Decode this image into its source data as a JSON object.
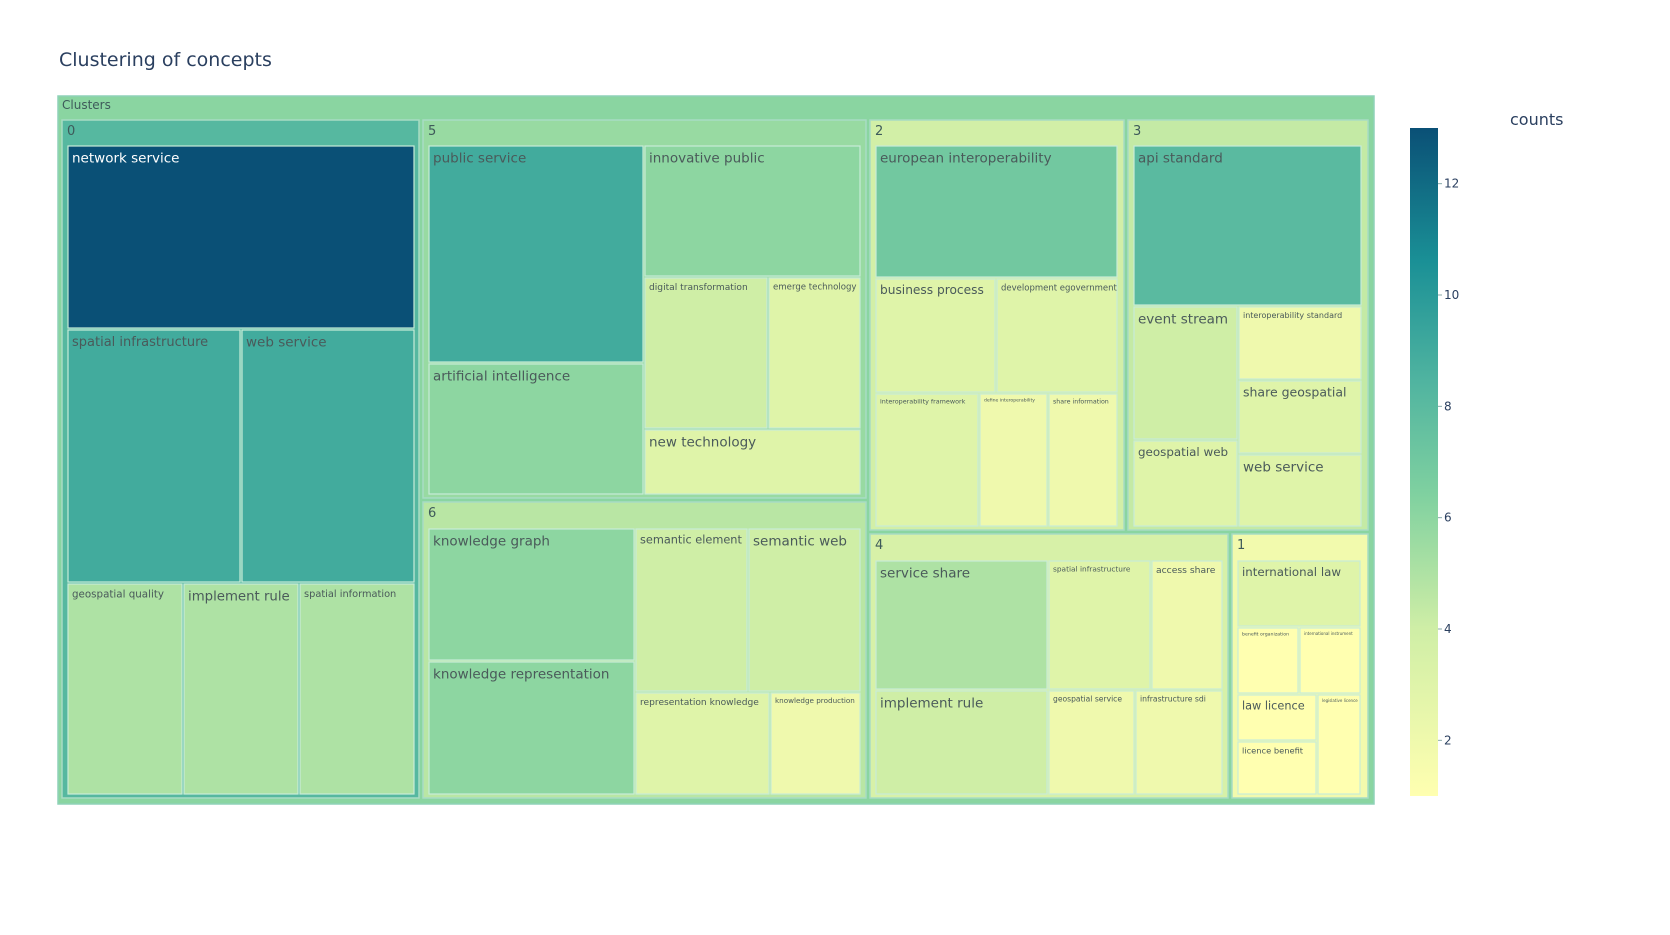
{
  "chart_data": {
    "type": "treemap",
    "title": "Clustering of concepts",
    "root_label": "Clusters",
    "colorbar": {
      "title": "counts",
      "ticks": [
        2,
        4,
        6,
        8,
        10,
        12
      ],
      "range": [
        1,
        13
      ]
    },
    "clusters": [
      {
        "id": "0",
        "label": "0",
        "children": [
          {
            "label": "network service",
            "count": 13
          },
          {
            "label": "spatial infrastructure",
            "count": 9
          },
          {
            "label": "web service",
            "count": 9
          },
          {
            "label": "geospatial quality",
            "count": 5
          },
          {
            "label": "implement rule",
            "count": 5
          },
          {
            "label": "spatial information",
            "count": 5
          }
        ]
      },
      {
        "id": "5",
        "label": "5",
        "children": [
          {
            "label": "public service",
            "count": 9
          },
          {
            "label": "innovative public",
            "count": 6
          },
          {
            "label": "artificial intelligence",
            "count": 6
          },
          {
            "label": "digital transformation",
            "count": 4
          },
          {
            "label": "emerge technology",
            "count": 3
          },
          {
            "label": "new technology",
            "count": 3
          }
        ]
      },
      {
        "id": "6",
        "label": "6",
        "children": [
          {
            "label": "knowledge graph",
            "count": 6
          },
          {
            "label": "knowledge representation",
            "count": 6
          },
          {
            "label": "semantic element",
            "count": 4
          },
          {
            "label": "semantic web",
            "count": 4
          },
          {
            "label": "representation knowledge",
            "count": 3
          },
          {
            "label": "knowledge production",
            "count": 2
          }
        ]
      },
      {
        "id": "2",
        "label": "2",
        "children": [
          {
            "label": "european interoperability",
            "count": 7
          },
          {
            "label": "business process",
            "count": 3
          },
          {
            "label": "development egovernment",
            "count": 3
          },
          {
            "label": "interoperability framework",
            "count": 3
          },
          {
            "label": "define interoperability",
            "count": 2
          },
          {
            "label": "share information",
            "count": 2
          }
        ]
      },
      {
        "id": "3",
        "label": "3",
        "children": [
          {
            "label": "api standard",
            "count": 8
          },
          {
            "label": "event stream",
            "count": 4
          },
          {
            "label": "interoperability standard",
            "count": 2
          },
          {
            "label": "share geospatial",
            "count": 3
          },
          {
            "label": "geospatial web",
            "count": 3
          },
          {
            "label": "web service",
            "count": 3
          }
        ]
      },
      {
        "id": "4",
        "label": "4",
        "children": [
          {
            "label": "service share",
            "count": 5
          },
          {
            "label": "implement rule",
            "count": 4
          },
          {
            "label": "spatial infrastructure",
            "count": 3
          },
          {
            "label": "access share",
            "count": 2
          },
          {
            "label": "geospatial service",
            "count": 2
          },
          {
            "label": "infrastructure sdi",
            "count": 2
          }
        ]
      },
      {
        "id": "1",
        "label": "1",
        "children": [
          {
            "label": "international law",
            "count": 3
          },
          {
            "label": "benefit organization",
            "count": 1
          },
          {
            "label": "international instrument",
            "count": 1
          },
          {
            "label": "law licence",
            "count": 1
          },
          {
            "label": "licence benefit",
            "count": 1
          },
          {
            "label": "legislative licence",
            "count": 1
          }
        ]
      }
    ]
  }
}
